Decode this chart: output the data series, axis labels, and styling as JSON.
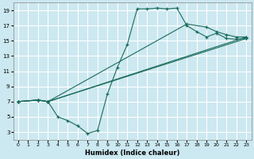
{
  "xlabel": "Humidex (Indice chaleur)",
  "bg_color": "#cce8f0",
  "grid_color": "#ffffff",
  "line_color": "#1a6b5a",
  "xlim": [
    -0.5,
    23.5
  ],
  "ylim": [
    2,
    20
  ],
  "xticks": [
    0,
    1,
    2,
    3,
    4,
    5,
    6,
    7,
    8,
    9,
    10,
    11,
    12,
    13,
    14,
    15,
    16,
    17,
    18,
    19,
    20,
    21,
    22,
    23
  ],
  "yticks": [
    3,
    5,
    7,
    9,
    11,
    13,
    15,
    17,
    19
  ],
  "curves": [
    {
      "x": [
        0,
        2,
        3,
        4,
        5,
        6,
        7,
        8,
        9,
        10,
        11,
        12,
        13,
        14,
        15,
        16,
        17,
        18,
        19,
        20,
        21,
        22,
        23
      ],
      "y": [
        7,
        7.2,
        7,
        5,
        4.5,
        3.8,
        2.8,
        3.2,
        8,
        11.5,
        14.5,
        19.2,
        19.2,
        19.3,
        19.2,
        19.3,
        17,
        16.2,
        15.5,
        16,
        15.3,
        15.2,
        15.3
      ]
    },
    {
      "x": [
        0,
        2,
        3,
        23
      ],
      "y": [
        7,
        7.2,
        7,
        15.3
      ]
    },
    {
      "x": [
        0,
        2,
        3,
        23
      ],
      "y": [
        7,
        7.2,
        7,
        15.5
      ]
    },
    {
      "x": [
        0,
        2,
        3,
        17,
        19,
        20,
        21,
        22,
        23
      ],
      "y": [
        7,
        7.2,
        7,
        17.2,
        16.8,
        16.2,
        15.8,
        15.5,
        15.5
      ]
    }
  ]
}
